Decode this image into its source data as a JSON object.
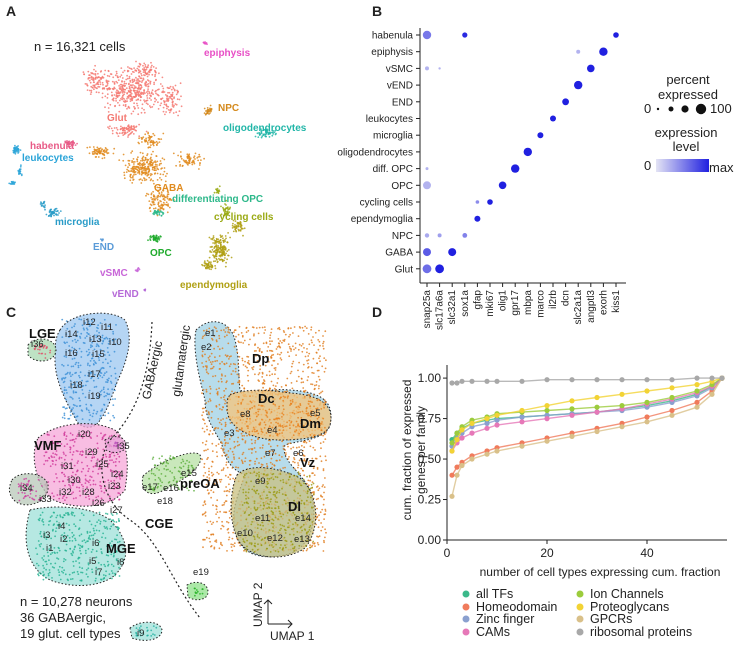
{
  "panels": {
    "A": {
      "letter": "A",
      "count_label": "n = 16,321 cells",
      "clusters": [
        {
          "label": "epiphysis",
          "color": "#e84fc6"
        },
        {
          "label": "Glut",
          "color": "#f47a73"
        },
        {
          "label": "habenula",
          "color": "#e85b87"
        },
        {
          "label": "leukocytes",
          "color": "#2aa4d8"
        },
        {
          "label": "NPC",
          "color": "#d48a1d"
        },
        {
          "label": "oligodendrocytes",
          "color": "#22b6a8"
        },
        {
          "label": "GABA",
          "color": "#e08b1f"
        },
        {
          "label": "differentiating OPC",
          "color": "#2db88a"
        },
        {
          "label": "microglia",
          "color": "#2a9cc8"
        },
        {
          "label": "cycling cells",
          "color": "#9aaa14"
        },
        {
          "label": "OPC",
          "color": "#1faa2c"
        },
        {
          "label": "END",
          "color": "#5a9bd8"
        },
        {
          "label": "vSMC",
          "color": "#c866d8"
        },
        {
          "label": "vEND",
          "color": "#b66ad8"
        },
        {
          "label": "ependymoglia",
          "color": "#b0a014"
        }
      ]
    },
    "B": {
      "letter": "B",
      "rows": [
        "habenula",
        "epiphysis",
        "vSMC",
        "vEND",
        "END",
        "leukocytes",
        "microglia",
        "oligodendrocytes",
        "diff. OPC",
        "OPC",
        "cycling cells",
        "ependymoglia",
        "NPC",
        "GABA",
        "Glut"
      ],
      "genes": [
        "snap25a",
        "slc17a6a",
        "slc32a1",
        "sox1a",
        "gfap",
        "mki67",
        "olig1",
        "gpr17",
        "mbpa",
        "marco",
        "il2rb",
        "dcn",
        "slc2a1a",
        "angptl3",
        "exorh",
        "kiss1"
      ],
      "legend_size_title_1": "percent",
      "legend_size_title_2": "expressed",
      "legend_size_min": "0",
      "legend_size_max": "100",
      "legend_color_title_1": "expression",
      "legend_color_title_2": "level",
      "legend_color_min": "0",
      "legend_color_max": "max"
    },
    "C": {
      "letter": "C",
      "region_labels": [
        "LGE",
        "VMF",
        "MGE",
        "CGE",
        "preOA",
        "Dp",
        "Dc",
        "Dm",
        "Vz",
        "Dl"
      ],
      "divider_labels": [
        "GABAergic",
        "glutamatergic"
      ],
      "cluster_ids": [
        "i12",
        "i11",
        "i14",
        "i13",
        "i10",
        "i16",
        "i15",
        "i17",
        "i18",
        "i19",
        "i36",
        "i20",
        "i35",
        "i29",
        "i31",
        "i30",
        "i25",
        "i24",
        "i32",
        "i28",
        "i23",
        "i26",
        "i34",
        "i33",
        "i27",
        "i4",
        "i3",
        "i2",
        "i1",
        "i6",
        "i5",
        "i7",
        "i8",
        "i9",
        "e1",
        "e2",
        "e8",
        "e3",
        "e4",
        "e5",
        "e7",
        "e6",
        "e9",
        "e11",
        "e14",
        "e10",
        "e12",
        "e13",
        "e15",
        "e16",
        "e17",
        "e18",
        "e19"
      ],
      "footer_line1": "n = 10,278 neurons",
      "footer_line2": "36 GABAergic,",
      "footer_line3": "19 glut. cell types",
      "axis_y": "UMAP 2",
      "axis_x": "UMAP 1"
    },
    "D": {
      "letter": "D",
      "ylabel_line1": "cum. fraction of expressed",
      "ylabel_line2": "genes per family",
      "xlabel": "number of cell types expressing cum. fraction"
    }
  },
  "chart_data": {
    "type": "line",
    "title": "",
    "xlabel": "number of cell types expressing cum. fraction",
    "ylabel": "cum. fraction of expressed genes per family",
    "xlim": [
      0,
      56
    ],
    "ylim": [
      0,
      1.05
    ],
    "xticks": [
      0,
      20,
      40
    ],
    "yticks": [
      0.0,
      0.25,
      0.5,
      0.75,
      1.0
    ],
    "ytick_labels": [
      "0.00",
      "0.25",
      "0.50",
      "0.75",
      "1.00"
    ],
    "legend_position": "bottom",
    "series": [
      {
        "name": "all TFs",
        "color": "#3bb98a",
        "x": [
          1,
          2,
          3,
          5,
          8,
          10,
          15,
          20,
          25,
          30,
          35,
          40,
          45,
          50,
          53,
          55
        ],
        "y": [
          0.62,
          0.66,
          0.69,
          0.72,
          0.74,
          0.75,
          0.76,
          0.77,
          0.78,
          0.79,
          0.81,
          0.83,
          0.86,
          0.9,
          0.95,
          1.0
        ]
      },
      {
        "name": "Homeodomain",
        "color": "#f07b5c",
        "x": [
          1,
          2,
          3,
          5,
          8,
          10,
          15,
          20,
          25,
          30,
          35,
          40,
          45,
          50,
          53,
          55
        ],
        "y": [
          0.4,
          0.45,
          0.48,
          0.52,
          0.55,
          0.57,
          0.6,
          0.63,
          0.66,
          0.69,
          0.72,
          0.76,
          0.8,
          0.85,
          0.92,
          1.0
        ]
      },
      {
        "name": "Zinc finger",
        "color": "#8aa0cf",
        "x": [
          1,
          2,
          3,
          5,
          8,
          10,
          15,
          20,
          25,
          30,
          35,
          40,
          45,
          50,
          53,
          55
        ],
        "y": [
          0.58,
          0.63,
          0.66,
          0.7,
          0.72,
          0.74,
          0.76,
          0.77,
          0.78,
          0.79,
          0.8,
          0.82,
          0.85,
          0.89,
          0.94,
          1.0
        ]
      },
      {
        "name": "CAMs",
        "color": "#e678b8",
        "x": [
          1,
          2,
          3,
          5,
          8,
          10,
          15,
          20,
          25,
          30,
          35,
          40,
          45,
          50,
          53,
          55
        ],
        "y": [
          0.55,
          0.6,
          0.63,
          0.66,
          0.69,
          0.71,
          0.73,
          0.75,
          0.77,
          0.79,
          0.81,
          0.84,
          0.87,
          0.91,
          0.95,
          1.0
        ]
      },
      {
        "name": "Ion Channels",
        "color": "#9ccc3c",
        "x": [
          1,
          2,
          3,
          5,
          8,
          10,
          15,
          20,
          25,
          30,
          35,
          40,
          45,
          50,
          53,
          55
        ],
        "y": [
          0.6,
          0.66,
          0.7,
          0.74,
          0.76,
          0.78,
          0.79,
          0.8,
          0.81,
          0.82,
          0.83,
          0.85,
          0.88,
          0.92,
          0.96,
          1.0
        ]
      },
      {
        "name": "Proteoglycans",
        "color": "#f2d335",
        "x": [
          1,
          2,
          3,
          5,
          8,
          10,
          15,
          20,
          25,
          30,
          35,
          40,
          45,
          50,
          53,
          55
        ],
        "y": [
          0.55,
          0.62,
          0.68,
          0.72,
          0.75,
          0.77,
          0.8,
          0.83,
          0.86,
          0.88,
          0.9,
          0.92,
          0.94,
          0.96,
          0.98,
          1.0
        ]
      },
      {
        "name": "GPCRs",
        "color": "#d9c089",
        "x": [
          1,
          2,
          3,
          5,
          8,
          10,
          15,
          20,
          25,
          30,
          35,
          40,
          45,
          50,
          53,
          55
        ],
        "y": [
          0.27,
          0.4,
          0.46,
          0.5,
          0.53,
          0.55,
          0.58,
          0.61,
          0.64,
          0.67,
          0.7,
          0.73,
          0.77,
          0.82,
          0.9,
          1.0
        ]
      },
      {
        "name": "ribosomal proteins",
        "color": "#a8a8a8",
        "x": [
          1,
          2,
          3,
          5,
          8,
          10,
          15,
          20,
          25,
          30,
          35,
          40,
          45,
          50,
          53,
          55
        ],
        "y": [
          0.97,
          0.97,
          0.98,
          0.98,
          0.98,
          0.98,
          0.98,
          0.99,
          0.99,
          0.99,
          0.99,
          0.99,
          0.99,
          1.0,
          1.0,
          1.0
        ]
      }
    ]
  }
}
